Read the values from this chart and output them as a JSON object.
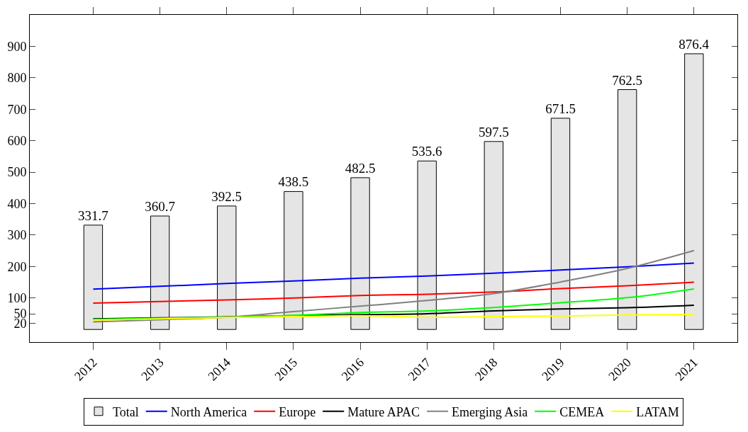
{
  "chart_data": {
    "type": "bar",
    "categories": [
      "2012",
      "2013",
      "2014",
      "2015",
      "2016",
      "2017",
      "2018",
      "2019",
      "2020",
      "2021"
    ],
    "series": [
      {
        "name": "Total",
        "color": "#e5e5e5",
        "values": [
          331.7,
          360.7,
          392.5,
          438.5,
          482.5,
          535.6,
          597.5,
          671.5,
          762.5,
          876.4
        ],
        "value_labels": [
          "331.7",
          "360.7",
          "392.5",
          "438.5",
          "482.5",
          "535.6",
          "597.5",
          "671.5",
          "762.5",
          "876.4"
        ]
      },
      {
        "name": "North America",
        "type": "line",
        "color": "#0000ff",
        "values": [
          128,
          137,
          146,
          154,
          163,
          170,
          179,
          189,
          199,
          211
        ]
      },
      {
        "name": "Europe",
        "type": "line",
        "color": "#ff0000",
        "values": [
          84,
          89,
          94,
          100,
          108,
          112,
          119,
          130,
          139,
          150
        ]
      },
      {
        "name": "Mature APAC",
        "type": "line",
        "color": "#000000",
        "values": [
          34,
          37,
          40,
          44,
          47,
          50,
          59,
          65,
          69,
          77
        ]
      },
      {
        "name": "Emerging Asia",
        "type": "line",
        "color": "#808080",
        "values": [
          24,
          31,
          39,
          57,
          74,
          92,
          114,
          151,
          194,
          251
        ]
      },
      {
        "name": "CEMEA",
        "type": "line",
        "color": "#00ff00",
        "values": [
          32,
          36,
          39,
          45,
          54,
          59,
          70,
          85,
          101,
          129
        ]
      },
      {
        "name": "LATAM",
        "type": "line",
        "color": "#ffff00",
        "values": [
          30,
          34,
          38,
          41,
          44,
          39,
          41,
          43,
          46,
          48
        ]
      }
    ],
    "ylim": [
      -40,
      1000
    ],
    "yticks": [
      20,
      50,
      100,
      200,
      300,
      400,
      500,
      600,
      700,
      800,
      900
    ],
    "legend": "bottom"
  }
}
